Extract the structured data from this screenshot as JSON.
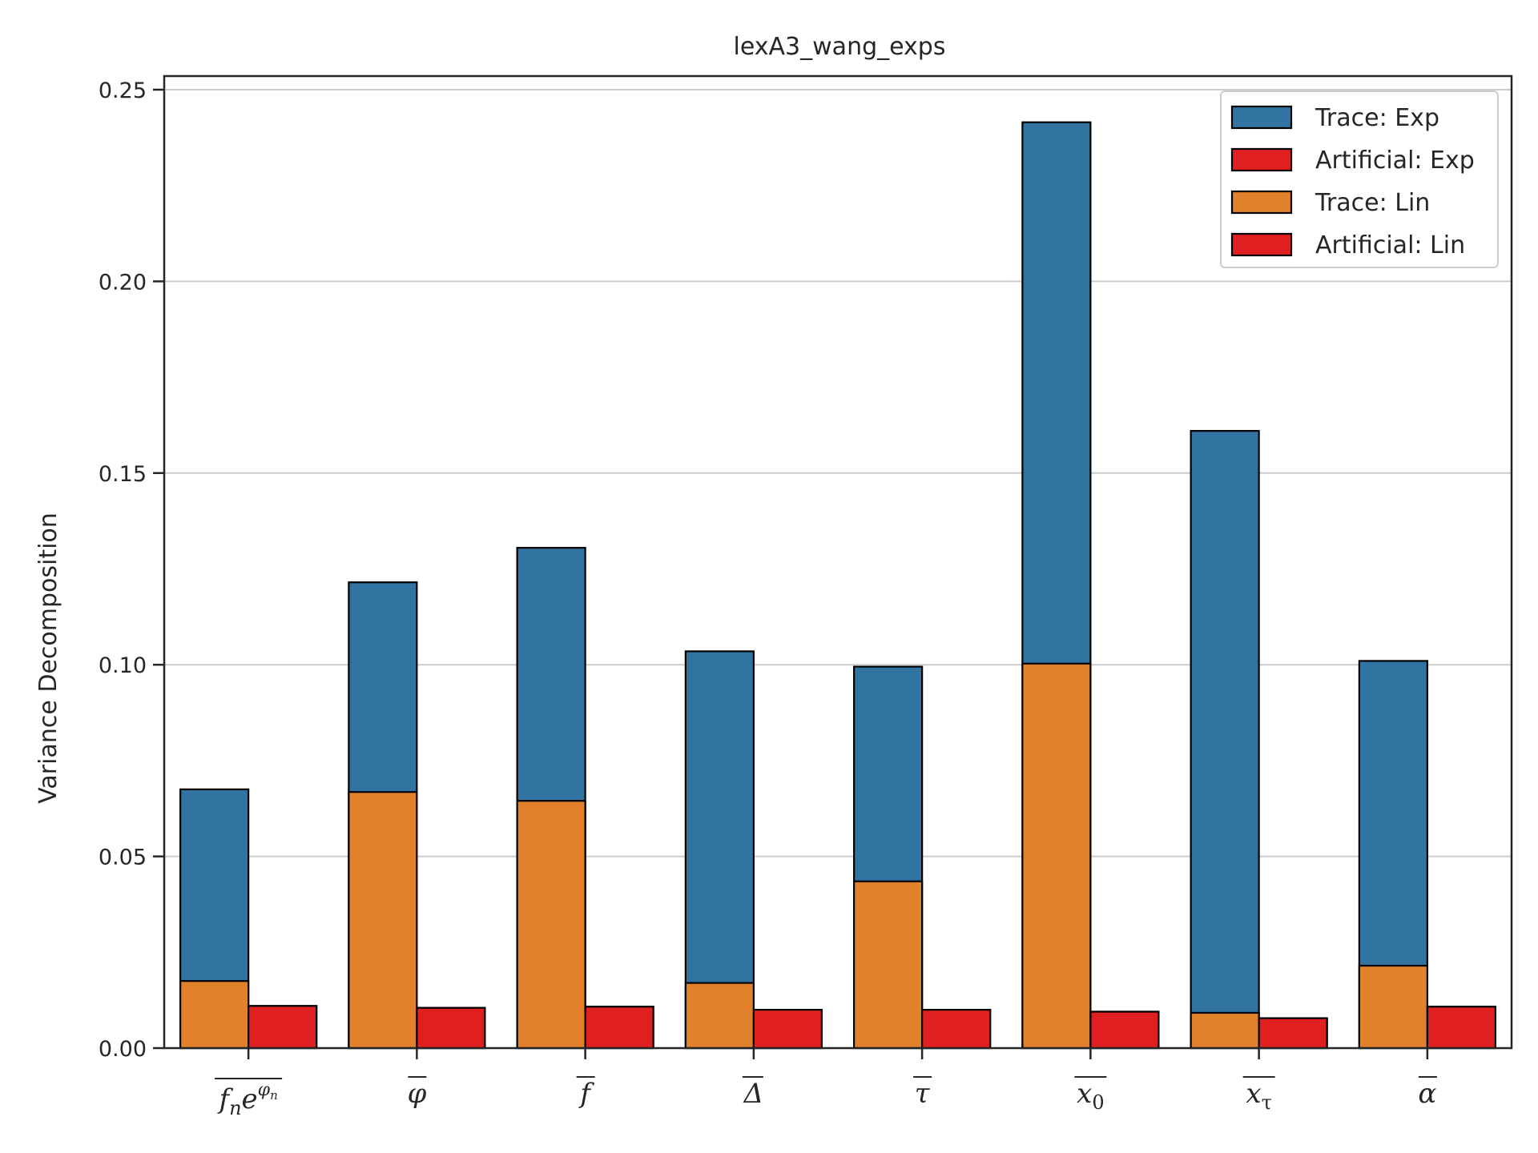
{
  "chart_data": {
    "type": "bar",
    "title": "lexA3_wang_exps",
    "xlabel": "",
    "ylabel": "Variance Decomposition",
    "ylim": [
      0,
      0.25
    ],
    "yticks": [
      "0.00",
      "0.05",
      "0.10",
      "0.15",
      "0.20",
      "0.25"
    ],
    "ytick_values": [
      0,
      0.05,
      0.1,
      0.15,
      0.2,
      0.25
    ],
    "grid": "y",
    "legend_position": "top-right",
    "categories": [
      "f_n e^{φ_n}",
      "φ",
      "f",
      "Δ",
      "τ",
      "x_0",
      "x_τ",
      "α"
    ],
    "series": [
      {
        "name": "Trace: Exp",
        "color": "#3274a1",
        "position": "left",
        "values": [
          0.0675,
          0.1215,
          0.1305,
          0.1035,
          0.0995,
          0.2415,
          0.161,
          0.101
        ]
      },
      {
        "name": "Artificial: Exp",
        "color": "#e02020",
        "position": "right",
        "values": [
          0.011,
          0.0105,
          0.0108,
          0.01,
          0.01,
          0.0095,
          0.0078,
          0.0108
        ]
      },
      {
        "name": "Trace: Lin",
        "color": "#e1812c",
        "position": "left",
        "values": [
          0.0175,
          0.0668,
          0.0645,
          0.017,
          0.0435,
          0.1003,
          0.0092,
          0.0215
        ]
      },
      {
        "name": "Artificial: Lin",
        "color": "#e02020",
        "position": "right",
        "values": [
          0.011,
          0.0105,
          0.0108,
          0.01,
          0.01,
          0.0095,
          0.0078,
          0.0108
        ]
      }
    ]
  }
}
